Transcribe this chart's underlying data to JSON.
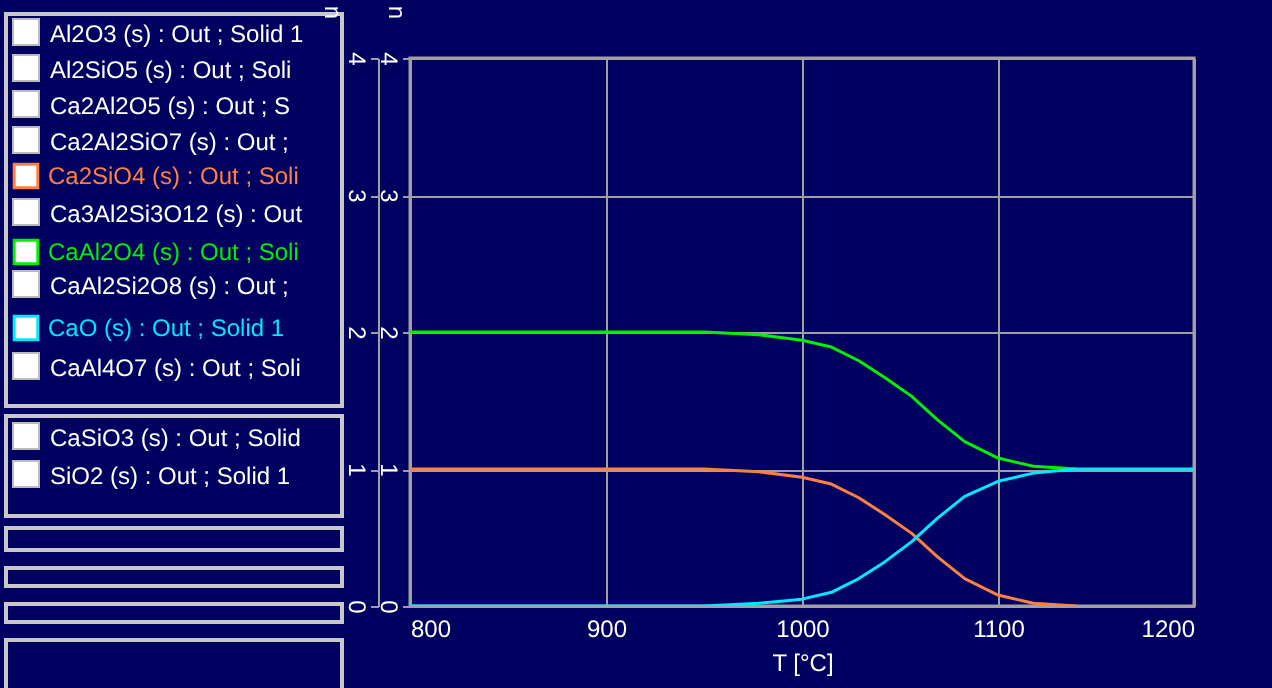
{
  "chart_data": {
    "type": "line",
    "xlabel": "T [°C]",
    "ylabel": "n",
    "y2label": "n",
    "xlim": [
      800,
      1200
    ],
    "xticks": [
      800,
      900,
      1000,
      1100,
      1200
    ],
    "ylim": [
      0,
      4
    ],
    "yticks": [
      0,
      1,
      2,
      3,
      4
    ],
    "y2lim": [
      0,
      4
    ],
    "y2ticks": [
      0,
      1,
      2,
      3,
      4
    ],
    "grid": true,
    "legend": "left",
    "line_style": "solid",
    "series": [
      {
        "name": "Ca2SiO4 (s) : Out ; Soli",
        "color": "#ff8040",
        "x": [
          800,
          950,
          978,
          1000,
          1015,
          1029,
          1042,
          1056,
          1069,
          1083,
          1100,
          1118,
          1140
        ],
        "values": [
          1,
          1,
          0.98,
          0.94,
          0.89,
          0.79,
          0.67,
          0.53,
          0.36,
          0.2,
          0.08,
          0.02,
          0
        ]
      },
      {
        "name": "CaAl2O4 (s) : Out ; Soli",
        "color": "#00f000",
        "x": [
          800,
          950,
          978,
          1000,
          1015,
          1029,
          1042,
          1056,
          1069,
          1083,
          1100,
          1118,
          1140
        ],
        "values": [
          2,
          2,
          1.98,
          1.94,
          1.89,
          1.79,
          1.67,
          1.53,
          1.36,
          1.2,
          1.08,
          1.02,
          1
        ]
      },
      {
        "name": "CaO (s) : Out ; Solid 1",
        "color": "#00e8ff",
        "x": [
          800,
          950,
          978,
          1000,
          1015,
          1029,
          1042,
          1056,
          1069,
          1083,
          1100,
          1118,
          1140,
          1200
        ],
        "values": [
          0,
          0,
          0.02,
          0.05,
          0.1,
          0.2,
          0.32,
          0.47,
          0.64,
          0.8,
          0.91,
          0.97,
          1,
          1
        ]
      }
    ],
    "annotations": [
      "Al2O3 (s) : Out ; Solid 1",
      "Al2SiO5 (s) : Out ; Soli",
      "Ca2Al2O5 (s) : Out ; S",
      "Ca2Al2SiO7 (s) : Out ;",
      "Ca3Al2Si3O12 (s) : Out",
      "CaAl2Si2O8 (s) : Out ;",
      "CaAl4O7 (s) : Out ; Soli",
      "CaSiO3 (s) : Out ; Solid",
      "SiO2 (s) : Out ; Solid 1"
    ]
  }
}
